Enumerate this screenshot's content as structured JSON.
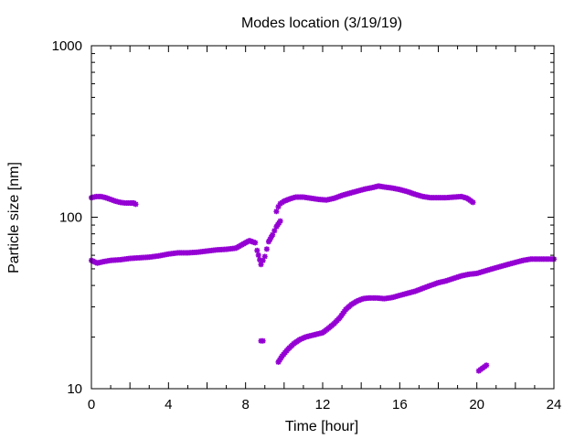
{
  "chart_data": {
    "type": "scatter",
    "title": "Modes location (3/19/19)",
    "xlabel": "Time [hour]",
    "ylabel": "Particle size [nm]",
    "xlim": [
      0,
      24
    ],
    "ylim": [
      10,
      1000
    ],
    "yscale": "log",
    "grid": false,
    "legend": "none",
    "x_ticks": [
      "0",
      "4",
      "8",
      "12",
      "16",
      "20",
      "24"
    ],
    "y_ticks": [
      "10",
      "100",
      "1000"
    ],
    "marker_color": "#9400D3",
    "series": [
      {
        "points": [
          [
            0,
            130
          ],
          [
            0.25,
            132
          ],
          [
            0.5,
            132
          ],
          [
            0.75,
            130
          ],
          [
            1.0,
            127
          ],
          [
            1.25,
            124
          ],
          [
            1.5,
            122
          ],
          [
            1.75,
            121
          ],
          [
            2.0,
            121
          ],
          [
            2.2,
            121
          ],
          [
            2.3,
            119
          ],
          [
            9.6,
            108
          ],
          [
            9.7,
            115
          ],
          [
            9.8,
            120
          ],
          [
            10.0,
            124
          ],
          [
            10.3,
            128
          ],
          [
            10.6,
            131
          ],
          [
            11.0,
            131
          ],
          [
            11.4,
            129
          ],
          [
            11.8,
            127
          ],
          [
            12.2,
            126
          ],
          [
            12.6,
            129
          ],
          [
            13.0,
            134
          ],
          [
            13.4,
            138
          ],
          [
            13.8,
            142
          ],
          [
            14.2,
            146
          ],
          [
            14.6,
            149
          ],
          [
            14.9,
            152
          ],
          [
            15.2,
            150
          ],
          [
            15.6,
            148
          ],
          [
            16.0,
            145
          ],
          [
            16.4,
            141
          ],
          [
            16.8,
            136
          ],
          [
            17.2,
            132
          ],
          [
            17.6,
            130
          ],
          [
            18.0,
            130
          ],
          [
            18.4,
            130
          ],
          [
            18.8,
            131
          ],
          [
            19.2,
            132
          ],
          [
            19.5,
            129
          ],
          [
            19.8,
            122
          ]
        ]
      },
      {
        "points": [
          [
            0,
            56
          ],
          [
            0.3,
            54
          ],
          [
            0.6,
            55
          ],
          [
            1.0,
            56
          ],
          [
            1.5,
            56.5
          ],
          [
            2.0,
            57.5
          ],
          [
            2.5,
            58
          ],
          [
            3.0,
            58.5
          ],
          [
            3.5,
            59.5
          ],
          [
            4.0,
            61
          ],
          [
            4.5,
            62
          ],
          [
            5.0,
            62
          ],
          [
            5.5,
            62.5
          ],
          [
            6.0,
            63.5
          ],
          [
            6.5,
            64.5
          ],
          [
            7.0,
            65
          ],
          [
            7.5,
            66
          ],
          [
            7.9,
            70
          ],
          [
            8.2,
            73
          ],
          [
            8.5,
            71
          ],
          [
            8.6,
            64
          ],
          [
            8.8,
            53
          ],
          [
            9.0,
            59
          ],
          [
            9.2,
            72
          ],
          [
            9.4,
            79
          ],
          [
            9.6,
            88
          ],
          [
            9.8,
            95
          ],
          [
            8.8,
            19
          ],
          [
            8.9,
            19
          ],
          [
            9.7,
            14.3
          ],
          [
            9.9,
            15.5
          ],
          [
            10.2,
            17
          ],
          [
            10.5,
            18.3
          ],
          [
            10.8,
            19.3
          ],
          [
            11.1,
            20
          ],
          [
            11.4,
            20.4
          ],
          [
            11.7,
            20.8
          ],
          [
            12.0,
            21.2
          ],
          [
            12.3,
            22.5
          ],
          [
            12.6,
            24
          ],
          [
            12.9,
            26
          ],
          [
            13.2,
            29
          ],
          [
            13.5,
            31
          ],
          [
            13.8,
            32.5
          ],
          [
            14.1,
            33.5
          ],
          [
            14.4,
            33.8
          ],
          [
            14.8,
            33.8
          ],
          [
            15.2,
            33.5
          ],
          [
            15.6,
            34
          ],
          [
            16.0,
            35
          ],
          [
            16.4,
            36
          ],
          [
            16.8,
            37
          ],
          [
            17.2,
            38.5
          ],
          [
            17.6,
            40
          ],
          [
            18.0,
            41.5
          ],
          [
            18.4,
            42.5
          ],
          [
            18.8,
            44
          ],
          [
            19.2,
            45.5
          ],
          [
            19.6,
            46.5
          ],
          [
            20.0,
            47
          ],
          [
            20.4,
            48.5
          ],
          [
            20.8,
            50
          ],
          [
            21.2,
            51.5
          ],
          [
            21.6,
            53
          ],
          [
            22.0,
            54.5
          ],
          [
            22.4,
            56
          ],
          [
            22.8,
            57
          ],
          [
            23.2,
            57
          ],
          [
            23.6,
            57
          ],
          [
            24.0,
            57
          ],
          [
            20.1,
            12.7
          ],
          [
            20.3,
            13.2
          ],
          [
            20.5,
            13.7
          ]
        ]
      }
    ]
  }
}
